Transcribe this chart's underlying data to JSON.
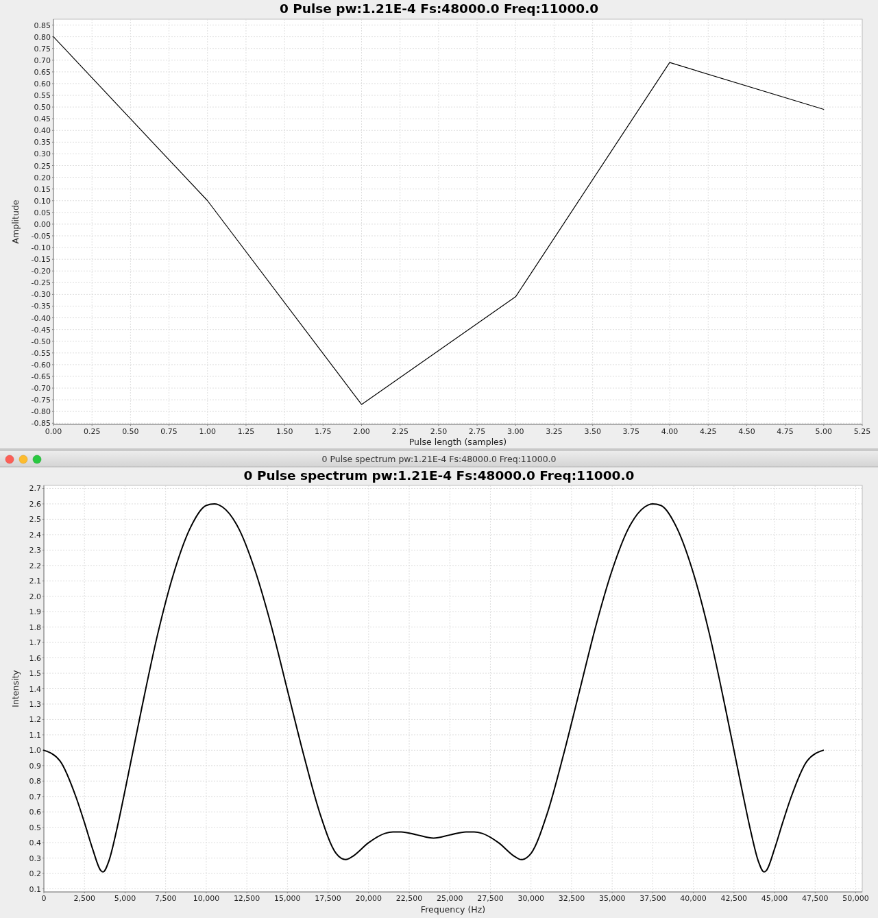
{
  "chart_data": [
    {
      "type": "line",
      "title": "0 Pulse pw:1.21E-4 Fs:48000.0 Freq:11000.0",
      "xlabel": "Pulse length (samples)",
      "ylabel": "Amplitude",
      "x": [
        0,
        1,
        2,
        3,
        4,
        5
      ],
      "series": [
        {
          "color": "#000000",
          "values": [
            0.8,
            0.1,
            -0.77,
            -0.31,
            0.69,
            0.49
          ]
        }
      ],
      "xlim": [
        0,
        5.25
      ],
      "ylim": [
        -0.855,
        0.875
      ],
      "xticks": [
        {
          "value": 0,
          "label": "0.00"
        },
        0.25,
        {
          "value": 0.5,
          "label": "0.50"
        },
        0.75,
        {
          "value": 1,
          "label": "1.00"
        },
        1.25,
        {
          "value": 1.5,
          "label": "1.50"
        },
        1.75,
        {
          "value": 2,
          "label": "2.00"
        },
        2.25,
        {
          "value": 2.5,
          "label": "2.50"
        },
        2.75,
        {
          "value": 3,
          "label": "3.00"
        },
        3.25,
        {
          "value": 3.5,
          "label": "3.50"
        },
        3.75,
        {
          "value": 4,
          "label": "4.00"
        },
        4.25,
        {
          "value": 4.5,
          "label": "4.50"
        },
        4.75,
        {
          "value": 5,
          "label": "5.00"
        },
        5.25
      ],
      "yticks": [
        -0.85,
        {
          "value": -0.8,
          "label": "-0.80"
        },
        -0.75,
        {
          "value": -0.7,
          "label": "-0.70"
        },
        -0.65,
        {
          "value": -0.6,
          "label": "-0.60"
        },
        -0.55,
        {
          "value": -0.5,
          "label": "-0.50"
        },
        -0.45,
        {
          "value": -0.4,
          "label": "-0.40"
        },
        -0.35,
        {
          "value": -0.3,
          "label": "-0.30"
        },
        -0.25,
        {
          "value": -0.2,
          "label": "-0.20"
        },
        -0.15,
        {
          "value": -0.1,
          "label": "-0.10"
        },
        -0.05,
        {
          "value": 0,
          "label": "0.00"
        },
        0.05,
        {
          "value": 0.1,
          "label": "0.10"
        },
        0.15,
        {
          "value": 0.2,
          "label": "0.20"
        },
        0.25,
        {
          "value": 0.3,
          "label": "0.30"
        },
        0.35,
        {
          "value": 0.4,
          "label": "0.40"
        },
        0.45,
        {
          "value": 0.5,
          "label": "0.50"
        },
        0.55,
        {
          "value": 0.6,
          "label": "0.60"
        },
        0.65,
        {
          "value": 0.7,
          "label": "0.70"
        },
        0.75,
        {
          "value": 0.8,
          "label": "0.80"
        },
        0.85
      ],
      "grid": true
    },
    {
      "type": "line",
      "title": "0 Pulse spectrum pw:1.21E-4 Fs:48000.0 Freq:11000.0",
      "xlabel": "Frequency (Hz)",
      "ylabel": "Intensity",
      "annotations": [
        "0 Pulse spectrum pw:1.21E-4 Fs:48000.0 Freq:11000.0"
      ],
      "x": [
        0,
        1000,
        2000,
        2500,
        3000,
        3500,
        3650,
        4000,
        4500,
        5000,
        6000,
        7000,
        8000,
        9000,
        10000,
        10500,
        11000,
        12000,
        13000,
        14000,
        15000,
        16000,
        17000,
        18000,
        18600,
        19000,
        20000,
        21000,
        21500,
        22000,
        23000,
        24000,
        25000,
        26000,
        26500,
        27000,
        28000,
        29000,
        29400,
        30000,
        31000,
        32000,
        33000,
        34000,
        35000,
        36000,
        37000,
        37500,
        38000,
        39000,
        40000,
        41000,
        42000,
        43000,
        43500,
        44000,
        44350,
        44500,
        45000,
        45500,
        46000,
        47000,
        48000
      ],
      "series": [
        {
          "color": "#000000",
          "values": [
            1.0,
            0.93,
            0.69,
            0.53,
            0.36,
            0.22,
            0.21,
            0.28,
            0.49,
            0.74,
            1.26,
            1.75,
            2.15,
            2.44,
            2.59,
            2.6,
            2.58,
            2.44,
            2.17,
            1.81,
            1.39,
            0.97,
            0.59,
            0.33,
            0.29,
            0.31,
            0.4,
            0.46,
            0.47,
            0.47,
            0.45,
            0.43,
            0.45,
            0.47,
            0.47,
            0.46,
            0.4,
            0.31,
            0.29,
            0.33,
            0.59,
            0.97,
            1.39,
            1.81,
            2.17,
            2.44,
            2.58,
            2.6,
            2.59,
            2.44,
            2.15,
            1.75,
            1.26,
            0.74,
            0.49,
            0.28,
            0.21,
            0.22,
            0.36,
            0.53,
            0.69,
            0.93,
            1.0
          ]
        }
      ],
      "xlim": [
        0,
        50400
      ],
      "ylim": [
        0.08,
        2.72
      ],
      "xticks": [
        0,
        {
          "value": 2500,
          "label": "2,500"
        },
        {
          "value": 5000,
          "label": "5,000"
        },
        {
          "value": 7500,
          "label": "7,500"
        },
        {
          "value": 10000,
          "label": "10,000"
        },
        {
          "value": 12500,
          "label": "12,500"
        },
        {
          "value": 15000,
          "label": "15,000"
        },
        {
          "value": 17500,
          "label": "17,500"
        },
        {
          "value": 20000,
          "label": "20,000"
        },
        {
          "value": 22500,
          "label": "22,500"
        },
        {
          "value": 25000,
          "label": "25,000"
        },
        {
          "value": 27500,
          "label": "27,500"
        },
        {
          "value": 30000,
          "label": "30,000"
        },
        {
          "value": 32500,
          "label": "32,500"
        },
        {
          "value": 35000,
          "label": "35,000"
        },
        {
          "value": 37500,
          "label": "37,500"
        },
        {
          "value": 40000,
          "label": "40,000"
        },
        {
          "value": 42500,
          "label": "42,500"
        },
        {
          "value": 45000,
          "label": "45,000"
        },
        {
          "value": 47500,
          "label": "47,500"
        },
        {
          "value": 50000,
          "label": "50,000"
        }
      ],
      "yticks": [
        0.1,
        0.2,
        0.3,
        0.4,
        0.5,
        0.6,
        0.7,
        0.8,
        0.9,
        {
          "value": 1,
          "label": "1.0"
        },
        1.1,
        1.2,
        1.3,
        1.4,
        1.5,
        1.6,
        1.7,
        1.8,
        1.9,
        {
          "value": 2,
          "label": "2.0"
        },
        2.1,
        2.2,
        2.3,
        2.4,
        2.5,
        2.6,
        2.7
      ],
      "grid": true
    }
  ]
}
